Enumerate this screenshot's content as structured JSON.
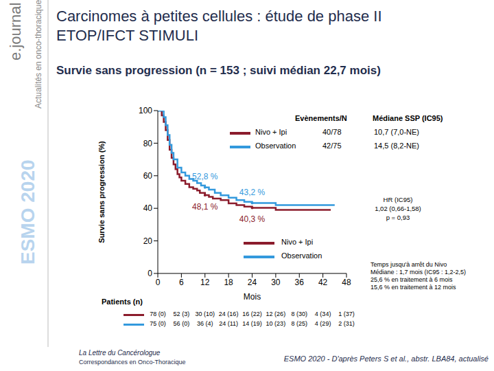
{
  "header": {
    "logo": "e.journal",
    "section": "Actualités en onco-thoracique",
    "congress": "ESMO 2020",
    "title": "Carcinomes à petites cellules : étude de phase II ETOP/IFCT STIMULI",
    "subtitle": "Survie sans progression (n = 153 ; suivi médian 22,7 mois)"
  },
  "chart_data": {
    "type": "line",
    "line_style": "step",
    "x_label": "Mois",
    "y_label": "Survie sans progression (%)",
    "xlim": [
      0,
      48
    ],
    "xticks": [
      0,
      6,
      12,
      18,
      24,
      30,
      36,
      42,
      48
    ],
    "ylim": [
      0,
      100
    ],
    "yticks": [
      0,
      20,
      40,
      60,
      80,
      100
    ],
    "legend_header": [
      "Evènements/N",
      "Médiane SSP (IC95)"
    ],
    "series": [
      {
        "name": "Nivo + Ipi",
        "color": "#8b1c2c",
        "events_n": "40/78",
        "median": "10,7 (7,0-NE)",
        "x": [
          0,
          1,
          1.5,
          2,
          2.5,
          3,
          3.5,
          4,
          4.5,
          5,
          5.5,
          6,
          7,
          8,
          9,
          10,
          10.7,
          12,
          13,
          14,
          16,
          18,
          20,
          22,
          24,
          27,
          30,
          33,
          36,
          40,
          44
        ],
        "values": [
          100,
          97,
          93,
          88,
          82,
          76,
          71,
          67,
          64,
          61,
          59,
          57,
          55,
          53,
          52,
          51,
          49.5,
          48.1,
          47,
          46,
          45,
          43,
          42,
          41,
          40.3,
          40.3,
          39,
          39,
          39,
          39,
          39
        ],
        "at_risk": [
          "78 (0)",
          "52 (3)",
          "30 (10)",
          "24 (16)",
          "16 (22)",
          "12 (26)",
          "8 (30)",
          "4 (34)",
          "1 (37)"
        ]
      },
      {
        "name": "Observation",
        "color": "#3399dd",
        "events_n": "42/75",
        "median": "14,5 (8,2-NE)",
        "x": [
          0,
          1.5,
          2,
          2.5,
          3,
          3.5,
          4,
          5,
          6,
          7,
          8,
          9,
          10,
          11,
          12,
          13,
          14.5,
          16,
          18,
          20,
          22,
          24,
          27,
          30,
          33,
          36,
          40,
          45
        ],
        "values": [
          100,
          96,
          91,
          85,
          79,
          74,
          70,
          65,
          62,
          60,
          58,
          57,
          55.5,
          54,
          52.8,
          51.5,
          49.5,
          48,
          46.5,
          45,
          44,
          43.2,
          43.2,
          42,
          42,
          42,
          42,
          42
        ],
        "at_risk": [
          "75 (0)",
          "56 (0)",
          "36 (4)",
          "24 (11)",
          "14 (19)",
          "10 (23)",
          "8 (25)",
          "4 (29)",
          "2 (31)"
        ]
      }
    ],
    "annotations": [
      {
        "text": "52,8 %",
        "x": 12,
        "y": 52.8,
        "series": "Observation"
      },
      {
        "text": "48,1 %",
        "x": 12,
        "y": 48.1,
        "series": "Nivo + Ipi"
      },
      {
        "text": "43,2 %",
        "x": 24,
        "y": 43.2,
        "series": "Observation"
      },
      {
        "text": "40,3 %",
        "x": 24,
        "y": 40.3,
        "series": "Nivo + Ipi"
      }
    ],
    "hr": {
      "label": "HR (IC95)",
      "value": "1,02 (0,66-1,58)",
      "p": "p = 0,93"
    },
    "at_risk_table": {
      "label": "Patients (n)",
      "x": [
        0,
        6,
        12,
        18,
        24,
        30,
        36,
        42,
        48
      ]
    },
    "note": [
      "Temps jusqu'à arrêt du Nivo",
      "Médiane : 1,7 mois (IC95 : 1,2-2,5)",
      "25,6 % en traitement à 6 mois",
      "15,6 % en traitement à 12 mois"
    ]
  },
  "footer": {
    "journal": "La Lettre du Cancérologue",
    "journal_subtitle": "Correspondances en Onco-Thoracique",
    "source": "ESMO 2020 - D'après Peters S et al., abstr. LBA84, actualisé"
  }
}
